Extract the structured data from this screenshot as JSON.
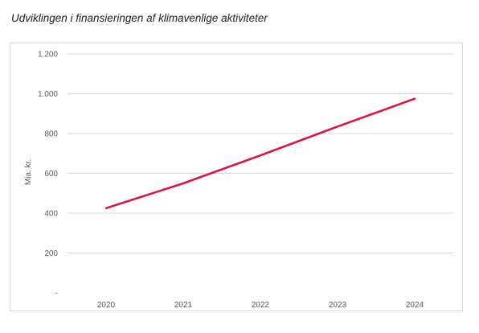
{
  "chart_data": {
    "type": "line",
    "title": "Udviklingen i finansieringen af klimavenlige aktiviteter",
    "xlabel": "",
    "ylabel": "Mia. kr.",
    "categories": [
      "2020",
      "2021",
      "2022",
      "2023",
      "2024"
    ],
    "series": [
      {
        "values": [
          425,
          550,
          690,
          835,
          975
        ]
      }
    ],
    "ylim": [
      0,
      1200
    ],
    "yticks": [
      {
        "value": 0,
        "label": "-"
      },
      {
        "value": 200,
        "label": "200"
      },
      {
        "value": 400,
        "label": "400"
      },
      {
        "value": 600,
        "label": "600"
      },
      {
        "value": 800,
        "label": "800"
      },
      {
        "value": 1000,
        "label": "1.000"
      },
      {
        "value": 1200,
        "label": "1.200"
      }
    ],
    "grid": true,
    "legend": "none",
    "line_color": "#e0103a"
  }
}
